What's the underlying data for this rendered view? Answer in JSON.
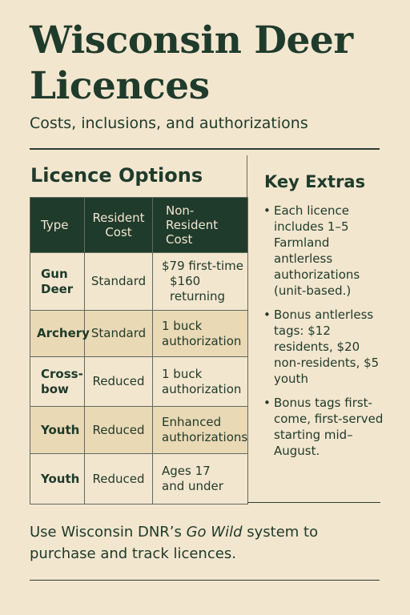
{
  "header": {
    "title": "Wisconsin Deer Licences",
    "subtitle": "Costs, inclusions, and authorizations"
  },
  "licence_options": {
    "title": "Licence Options",
    "columns": [
      "Type",
      "Resident Cost",
      "Non-Resident Cost"
    ],
    "rows": [
      {
        "type": "Gun Deer",
        "resident": "Standard",
        "nonresident_line1": "$79 first-time",
        "nonresident_line2": "$160 returning"
      },
      {
        "type": "Archery",
        "resident": "Standard",
        "nonresident_line1": "1 buck",
        "nonresident_line2": "authorization"
      },
      {
        "type": "Cross-bow",
        "resident": "Reduced",
        "nonresident_line1": "1 buck",
        "nonresident_line2": "authorization"
      },
      {
        "type": "Youth",
        "resident": "Reduced",
        "nonresident_line1": "Enhanced",
        "nonresident_line2": "authorizations"
      },
      {
        "type": "Youth",
        "resident": "Reduced",
        "nonresident_line1": "Ages 17",
        "nonresident_line2": "and under"
      }
    ]
  },
  "key_extras": {
    "title": "Key Extras",
    "items": [
      "Each licence includes 1–5 Farmland antlerless authorizations (unit-based.)",
      "Bonus antlerless tags: $12 residents, $20 non-residents, $5 youth",
      "Bonus tags first-come, first-served starting mid–August."
    ]
  },
  "footer": {
    "text_before": "Use Wisconsin DNR’s ",
    "system_name": "Go Wild",
    "text_after": " system to purchase and track licences."
  },
  "colors": {
    "background": "#f3e6cf",
    "accent_dark_green": "#1f3b2c",
    "row_shade": "#ead9b5"
  }
}
